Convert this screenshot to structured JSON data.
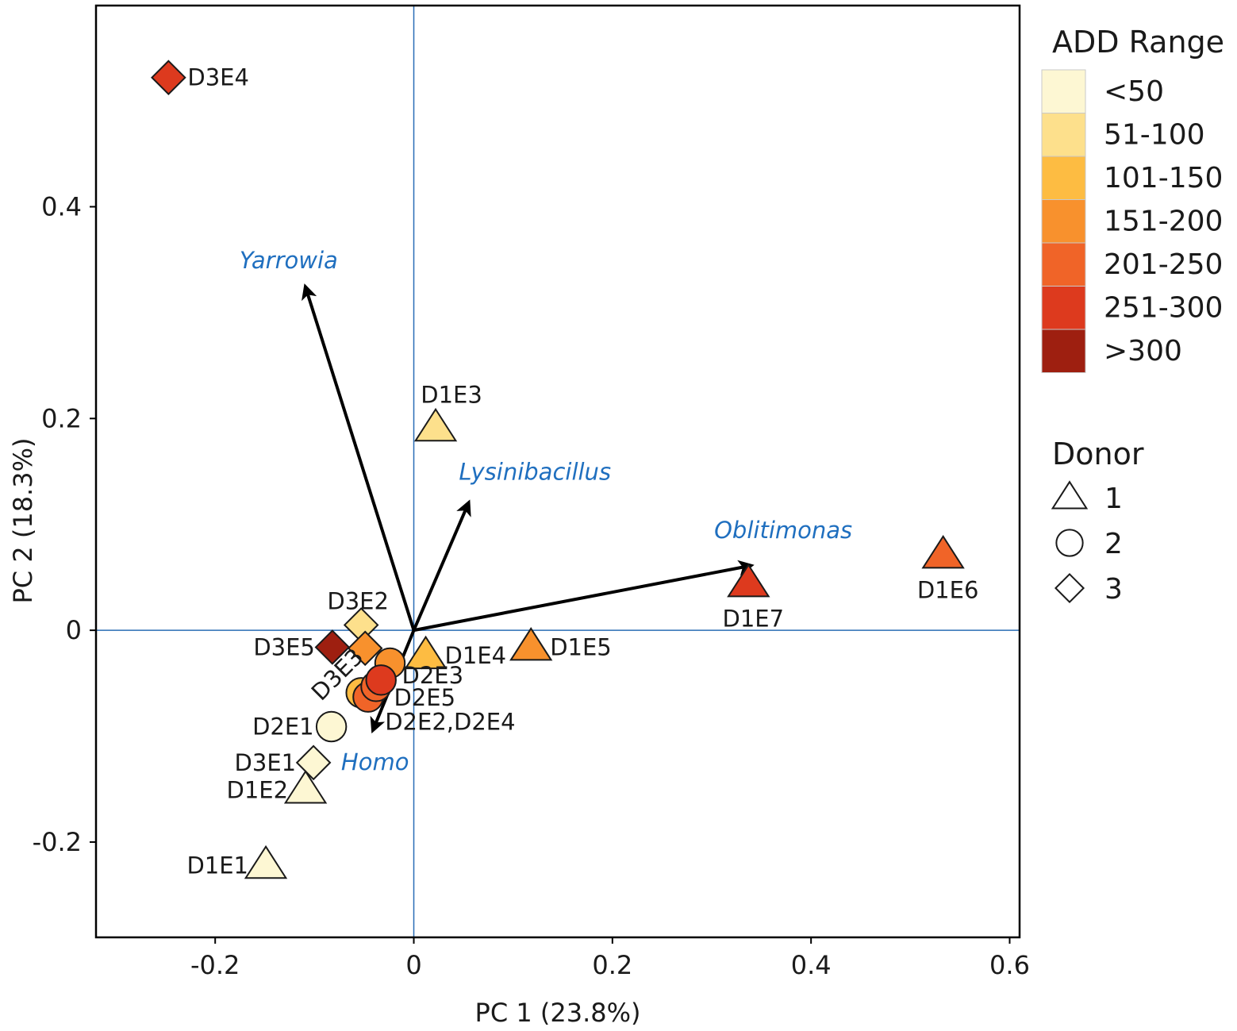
{
  "chart_data": {
    "type": "scatter",
    "subtype": "pca-biplot",
    "xlabel": "PC 1 (23.8%)",
    "ylabel": "PC 2 (18.3%)",
    "xlim": [
      -0.32,
      0.61
    ],
    "ylim": [
      -0.29,
      0.59
    ],
    "x_ticks": [
      -0.2,
      0,
      0.2,
      0.4,
      0.6
    ],
    "y_ticks": [
      -0.2,
      0,
      0.2,
      0.4
    ],
    "x_tick_labels": [
      "-0.2",
      "0",
      "0.2",
      "0.4",
      "0.6"
    ],
    "y_tick_labels": [
      "-0.2",
      "0",
      "0.2",
      "0.4"
    ],
    "reference_lines": {
      "x": 0,
      "y": 0,
      "color": "#2a6db5"
    },
    "add_ranges": [
      {
        "key": "lt50",
        "label": "<50",
        "color": "#fdf7d3"
      },
      {
        "key": "51_100",
        "label": "51-100",
        "color": "#fde08c"
      },
      {
        "key": "101_150",
        "label": "101-150",
        "color": "#fdbc42"
      },
      {
        "key": "151_200",
        "label": "151-200",
        "color": "#f8912d"
      },
      {
        "key": "201_250",
        "label": "201-250",
        "color": "#f06428"
      },
      {
        "key": "251_300",
        "label": "251-300",
        "color": "#dd3a1e"
      },
      {
        "key": "gt300",
        "label": ">300",
        "color": "#9e1f10"
      }
    ],
    "legend_add_title": "ADD Range",
    "legend_donor_title": "Donor",
    "donors": [
      {
        "id": 1,
        "label": "1",
        "shape": "triangle"
      },
      {
        "id": 2,
        "label": "2",
        "shape": "circle"
      },
      {
        "id": 3,
        "label": "3",
        "shape": "diamond"
      }
    ],
    "points": [
      {
        "label": "D3E4",
        "x": -0.247,
        "y": 0.522,
        "donor": 3,
        "range": 5,
        "label_pos": "right"
      },
      {
        "label": "D1E3",
        "x": 0.022,
        "y": 0.191,
        "donor": 1,
        "range": 1,
        "label_pos": "above"
      },
      {
        "label": "D1E6",
        "x": 0.533,
        "y": 0.071,
        "donor": 1,
        "range": 4,
        "label_pos": "below"
      },
      {
        "label": "D1E7",
        "x": 0.337,
        "y": 0.044,
        "donor": 1,
        "range": 5,
        "label_pos": "below"
      },
      {
        "label": "D3E2",
        "x": -0.053,
        "y": 0.005,
        "donor": 3,
        "range": 1,
        "label_pos": "above-left"
      },
      {
        "label": "D3E5",
        "x": -0.082,
        "y": -0.016,
        "donor": 3,
        "range": 6,
        "label_pos": "left"
      },
      {
        "label": "D3E3",
        "x": -0.049,
        "y": -0.017,
        "donor": 3,
        "range": 3,
        "label_pos": "rotated"
      },
      {
        "label": "D1E4",
        "x": 0.012,
        "y": -0.024,
        "donor": 1,
        "range": 2,
        "label_pos": "right"
      },
      {
        "label": "D1E5",
        "x": 0.118,
        "y": -0.016,
        "donor": 1,
        "range": 3,
        "label_pos": "right"
      },
      {
        "label": "",
        "x": -0.024,
        "y": -0.031,
        "donor": 2,
        "range": 3,
        "label_pos": "none"
      },
      {
        "label": "",
        "x": -0.053,
        "y": -0.059,
        "donor": 2,
        "range": 2,
        "label_pos": "none"
      },
      {
        "label": "",
        "x": -0.046,
        "y": -0.063,
        "donor": 2,
        "range": 4,
        "label_pos": "none"
      },
      {
        "label": "",
        "x": -0.038,
        "y": -0.053,
        "donor": 2,
        "range": 4,
        "label_pos": "none"
      },
      {
        "label": "",
        "x": -0.033,
        "y": -0.047,
        "donor": 2,
        "range": 5,
        "label_pos": "none"
      },
      {
        "label": "D2E1",
        "x": -0.083,
        "y": -0.091,
        "donor": 2,
        "range": 0,
        "label_pos": "left"
      },
      {
        "label": "D3E1",
        "x": -0.101,
        "y": -0.125,
        "donor": 3,
        "range": 0,
        "label_pos": "left"
      },
      {
        "label": "D1E2",
        "x": -0.109,
        "y": -0.151,
        "donor": 1,
        "range": 0,
        "label_pos": "left"
      },
      {
        "label": "D1E1",
        "x": -0.149,
        "y": -0.222,
        "donor": 1,
        "range": 0,
        "label_pos": "left"
      }
    ],
    "group_labels": [
      {
        "label": "D2E3",
        "x": -0.012,
        "y": -0.05
      },
      {
        "label": "D2E5",
        "x": -0.02,
        "y": -0.071
      },
      {
        "label": "D2E2,D2E4",
        "x": -0.029,
        "y": -0.094
      }
    ],
    "vectors": [
      {
        "name": "Yarrowia",
        "x": -0.109,
        "y": 0.324,
        "label_x": -0.126,
        "label_y": 0.342
      },
      {
        "name": "Lysinibacillus",
        "x": 0.055,
        "y": 0.12,
        "label_x": 0.122,
        "label_y": 0.142
      },
      {
        "name": "Oblitimonas",
        "x": 0.339,
        "y": 0.061,
        "label_x": 0.372,
        "label_y": 0.087
      },
      {
        "name": "Homo",
        "x": -0.041,
        "y": -0.094,
        "label_x": -0.039,
        "label_y": -0.132
      }
    ]
  }
}
